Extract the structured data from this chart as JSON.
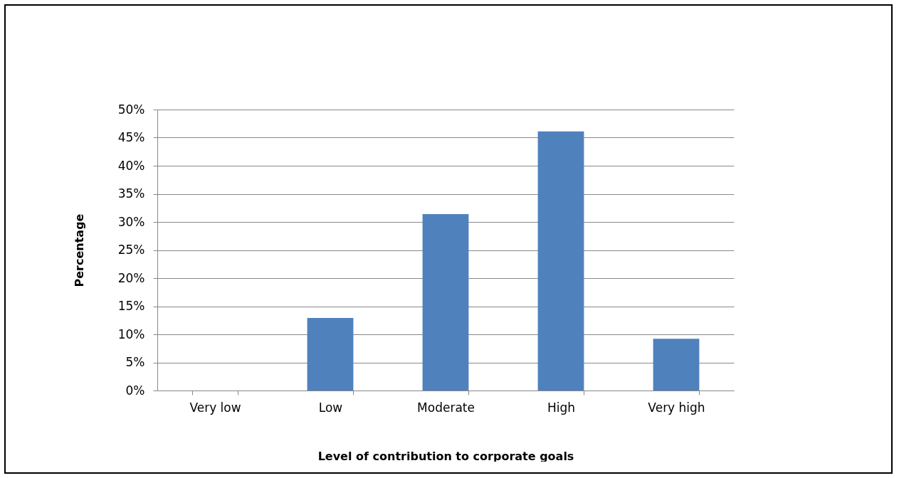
{
  "chart_data": {
    "type": "bar",
    "xlabel": "Level of contribution to corporate goals",
    "ylabel": "Percentage",
    "categories": [
      "Very low",
      "Low",
      "Moderate",
      "High",
      "Very high"
    ],
    "values": [
      0,
      12.9,
      31.4,
      46.1,
      9.2
    ],
    "color": "#4f81bd",
    "ylim": [
      0,
      50
    ],
    "yticks": [
      {
        "value": 0,
        "label": "0%"
      },
      {
        "value": 5,
        "label": "5%"
      },
      {
        "value": 10,
        "label": "10%"
      },
      {
        "value": 15,
        "label": "15%"
      },
      {
        "value": 20,
        "label": "20%"
      },
      {
        "value": 25,
        "label": "25%"
      },
      {
        "value": 30,
        "label": "30%"
      },
      {
        "value": 35,
        "label": "35%"
      },
      {
        "value": 40,
        "label": "40%"
      },
      {
        "value": 45,
        "label": "45%"
      },
      {
        "value": 50,
        "label": "50%"
      }
    ],
    "grid": "y"
  }
}
